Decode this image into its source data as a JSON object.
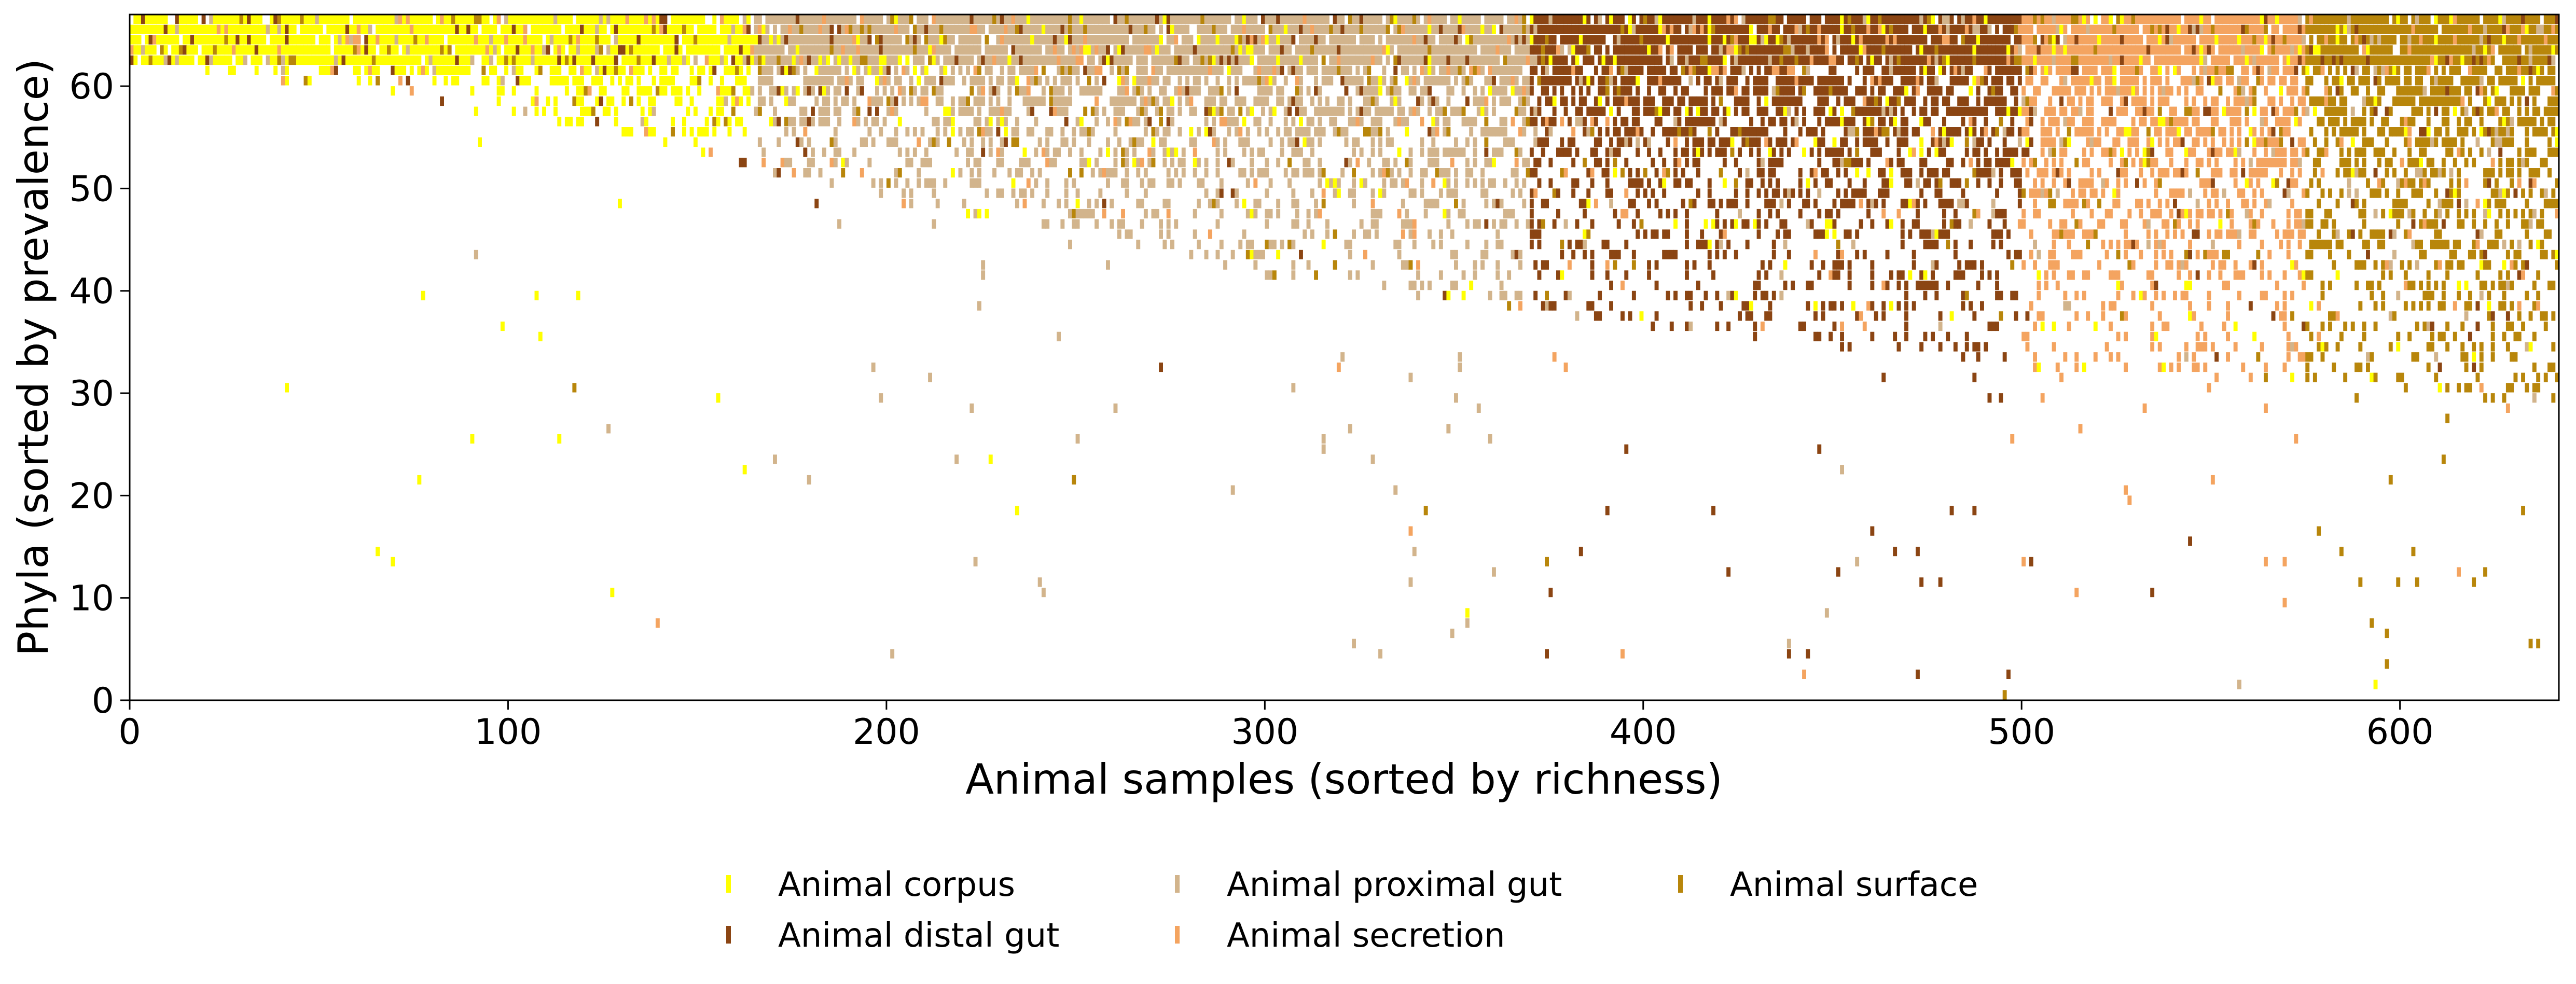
{
  "chart_data": {
    "type": "heatmap",
    "title": "",
    "xlabel": "Animal samples (sorted by richness)",
    "ylabel": "Phyla (sorted by prevalence)",
    "xlim": [
      0,
      642
    ],
    "ylim": [
      0,
      67
    ],
    "xticks": [
      0,
      100,
      200,
      300,
      400,
      500,
      600
    ],
    "yticks": [
      0,
      10,
      20,
      30,
      40,
      50,
      60
    ],
    "grid": false,
    "legend_position": "bottom-center",
    "series": [
      {
        "name": "Animal corpus",
        "color": "#ffff00"
      },
      {
        "name": "Animal distal gut",
        "color": "#8b4513"
      },
      {
        "name": "Animal proximal gut",
        "color": "#d2b48c"
      },
      {
        "name": "Animal secretion",
        "color": "#f4a460"
      },
      {
        "name": "Animal surface",
        "color": "#b8860b"
      }
    ],
    "sample_category_spans": [
      {
        "series": "Animal corpus",
        "x": [
          0,
          165
        ]
      },
      {
        "series": "Animal proximal gut",
        "x": [
          165,
          370
        ]
      },
      {
        "series": "Animal distal gut",
        "x": [
          370,
          500
        ]
      },
      {
        "series": "Animal secretion",
        "x": [
          500,
          575
        ]
      },
      {
        "series": "Animal surface",
        "x": [
          575,
          642
        ]
      }
    ],
    "presence_threshold": [
      {
        "x": 0,
        "y": 62
      },
      {
        "x": 100,
        "y": 57
      },
      {
        "x": 200,
        "y": 48
      },
      {
        "x": 300,
        "y": 41
      },
      {
        "x": 400,
        "y": 36
      },
      {
        "x": 500,
        "y": 32
      },
      {
        "x": 600,
        "y": 30
      },
      {
        "x": 642,
        "y": 27
      }
    ]
  }
}
